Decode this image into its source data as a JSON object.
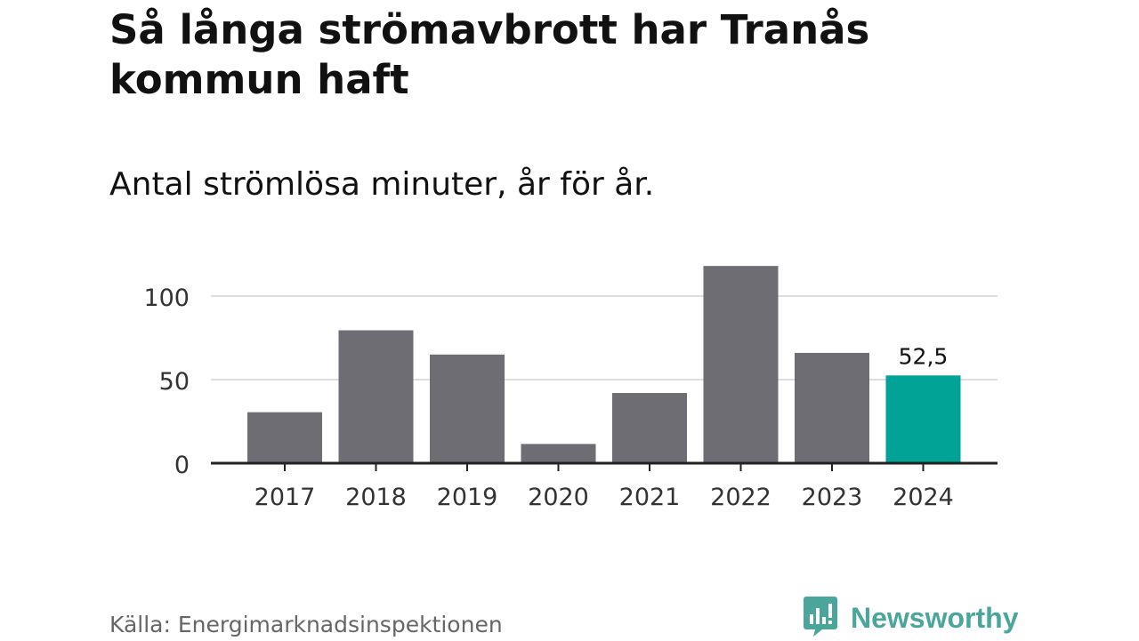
{
  "title": "Så långa strömavbrott har Tranås kommun haft",
  "subtitle": "Antal strömlösa minuter, år för år.",
  "chart_data": {
    "type": "bar",
    "categories": [
      "2017",
      "2018",
      "2019",
      "2020",
      "2021",
      "2022",
      "2023",
      "2024"
    ],
    "values": [
      30.5,
      79.5,
      65,
      11.5,
      42,
      118,
      66,
      52.5
    ],
    "highlight_index": 7,
    "data_labels": [
      {
        "index": 7,
        "text": "52,5"
      }
    ],
    "yticks": [
      0,
      50,
      100
    ],
    "ytick_labels": [
      "0",
      "50",
      "100"
    ],
    "ylim": [
      0,
      125
    ],
    "colors": {
      "bar": "#6e6d73",
      "highlight": "#00a396",
      "grid": "#dddddd",
      "axis": "#222222"
    }
  },
  "source": "Källa: Energimarknadsinspektionen",
  "brand": {
    "name": "Newsworthy",
    "icon": "newsworthy-logo-icon",
    "color": "#4aa59b"
  }
}
